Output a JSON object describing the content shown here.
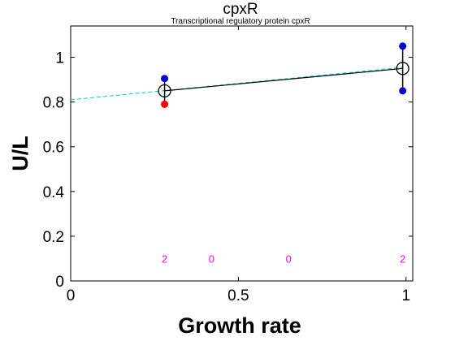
{
  "chart_data": {
    "type": "scatter",
    "title": "cpxR",
    "subtitle": "Transcriptional regulatory protein cpxR",
    "xlabel": "Growth rate",
    "ylabel": "U/L",
    "xlim": [
      0,
      1.02
    ],
    "ylim": [
      0,
      1.14
    ],
    "xticks": [
      0,
      0.5,
      1
    ],
    "xtick_labels": [
      "0",
      "0.5",
      "1"
    ],
    "yticks": [
      0,
      0.2,
      0.4,
      0.6,
      0.8,
      1
    ],
    "ytick_labels": [
      "0",
      "0.2",
      "0.4",
      "0.6",
      "0.8",
      "1"
    ],
    "grid": false,
    "replicates": [
      {
        "x": 0.28,
        "y": 0.905,
        "color": "#0000cc"
      },
      {
        "x": 0.28,
        "y": 0.79,
        "color": "#ff0000"
      },
      {
        "x": 0.99,
        "y": 1.05,
        "color": "#0000cc"
      },
      {
        "x": 0.99,
        "y": 0.85,
        "color": "#0000cc"
      }
    ],
    "means": [
      {
        "x": 0.28,
        "y": 0.85,
        "err_low": 0.8,
        "err_high": 0.9
      },
      {
        "x": 0.99,
        "y": 0.95,
        "err_low": 0.85,
        "err_high": 1.05
      }
    ],
    "mean_line": {
      "x": [
        0.28,
        0.99
      ],
      "y": [
        0.85,
        0.95
      ],
      "color": "#000000"
    },
    "fit_line": {
      "x": [
        0,
        0.99
      ],
      "y": [
        0.81,
        0.955
      ],
      "color": "#00cccc",
      "style": "dashed"
    },
    "counts": [
      {
        "x": 0.28,
        "label": "2"
      },
      {
        "x": 0.42,
        "label": "0"
      },
      {
        "x": 0.65,
        "label": "0"
      },
      {
        "x": 0.99,
        "label": "2"
      }
    ],
    "count_y": 0.1
  }
}
